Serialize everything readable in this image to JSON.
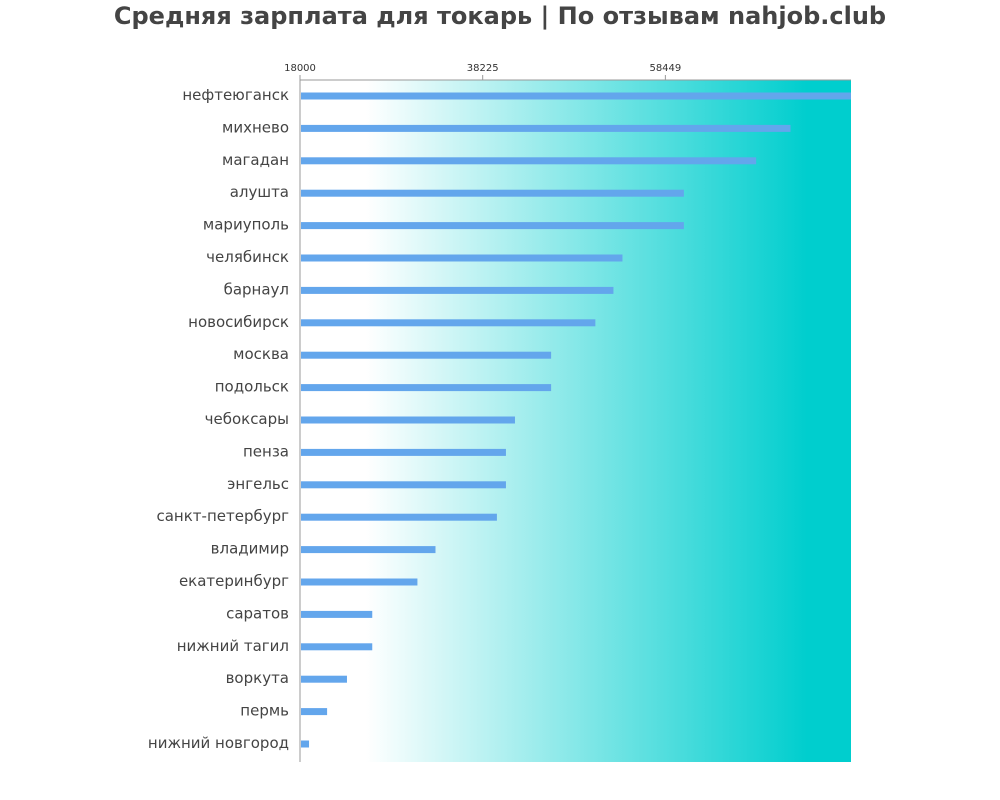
{
  "chart_data": {
    "type": "bar",
    "orientation": "horizontal",
    "title": "Средняя зарплата для токарь | По отзывам nahjob.club",
    "xlabel": "",
    "ylabel": "",
    "xlim": [
      18000,
      79000
    ],
    "ticks": [
      18000,
      38225,
      58449
    ],
    "tick_labels": [
      "18000",
      "38225",
      "58449"
    ],
    "grid": false,
    "legend": "none",
    "categories": [
      "нефтеюганск",
      "михнево",
      "магадан",
      "алушта",
      "мариуполь",
      "челябинск",
      "барнаул",
      "новосибирск",
      "москва",
      "подольск",
      "чебоксары",
      "пенза",
      "энгельс",
      "санкт-петербург",
      "владимир",
      "екатеринбург",
      "саратов",
      "нижний тагил",
      "воркута",
      "пермь",
      "нижний новгород"
    ],
    "values": [
      79000,
      72300,
      68500,
      60500,
      60500,
      53700,
      52700,
      50700,
      45800,
      45800,
      41800,
      40800,
      40800,
      39800,
      33000,
      31000,
      26000,
      26000,
      23200,
      21000,
      19000
    ],
    "colors": {
      "bar": "#63a6ec",
      "background_start": "#ffffff",
      "background_end": "#00cece",
      "axis": "#999999"
    }
  }
}
